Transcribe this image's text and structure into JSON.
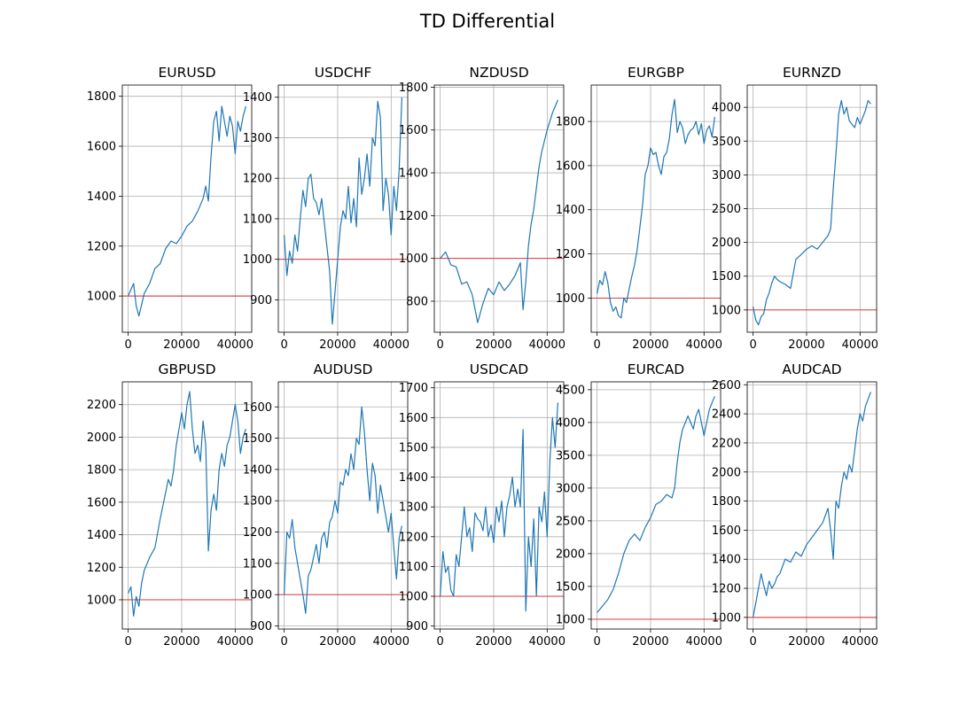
{
  "figure": {
    "title": "TD Differential"
  },
  "colors": {
    "line": "#1f77b4",
    "reference_line": "#d62728",
    "grid": "#b0b0b0",
    "axes": "#000000"
  },
  "chart_data": [
    {
      "type": "line",
      "title": "EURUSD",
      "grid": true,
      "xlim": [
        -2200,
        46200
      ],
      "ylim": [
        855,
        1845
      ],
      "xticks": [
        0,
        20000,
        40000
      ],
      "yticks": [
        1000,
        1200,
        1400,
        1600,
        1800
      ],
      "reference_y": 1000,
      "series": [
        {
          "x": [
            0,
            2000,
            3000,
            4000,
            6000,
            8000,
            10000,
            12000,
            14000,
            16000,
            18000,
            20000,
            22000,
            24000,
            26000,
            28000,
            29000,
            30000,
            31000,
            32000,
            33000,
            34000,
            35000,
            36000,
            37000,
            38000,
            39000,
            40000,
            41000,
            42000,
            43000,
            44000
          ],
          "y": [
            1000,
            1050,
            960,
            920,
            1010,
            1050,
            1110,
            1130,
            1190,
            1220,
            1210,
            1240,
            1280,
            1300,
            1340,
            1390,
            1440,
            1380,
            1560,
            1700,
            1740,
            1620,
            1760,
            1700,
            1640,
            1720,
            1680,
            1570,
            1700,
            1660,
            1720,
            1760
          ]
        }
      ]
    },
    {
      "type": "line",
      "title": "USDCHF",
      "grid": true,
      "xlim": [
        -2200,
        46200
      ],
      "ylim": [
        820,
        1430
      ],
      "xticks": [
        0,
        20000,
        40000
      ],
      "yticks": [
        900,
        1000,
        1100,
        1200,
        1300,
        1400
      ],
      "reference_y": 1000,
      "series": [
        {
          "x": [
            0,
            1000,
            2000,
            3000,
            4000,
            5000,
            6000,
            7000,
            8000,
            9000,
            10000,
            11000,
            12000,
            13000,
            14000,
            15000,
            16000,
            17000,
            18000,
            19000,
            20000,
            21000,
            22000,
            23000,
            24000,
            25000,
            26000,
            27000,
            28000,
            29000,
            30000,
            31000,
            32000,
            33000,
            34000,
            35000,
            36000,
            37000,
            38000,
            39000,
            40000,
            41000,
            42000,
            43000,
            44000
          ],
          "y": [
            1060,
            960,
            1020,
            990,
            1060,
            1020,
            1100,
            1170,
            1130,
            1200,
            1210,
            1150,
            1140,
            1110,
            1150,
            1090,
            1030,
            970,
            840,
            920,
            1000,
            1080,
            1120,
            1100,
            1180,
            1090,
            1150,
            1080,
            1250,
            1160,
            1200,
            1260,
            1180,
            1300,
            1280,
            1390,
            1350,
            1120,
            1200,
            1160,
            1060,
            1180,
            1120,
            1220,
            1400
          ]
        }
      ]
    },
    {
      "type": "line",
      "title": "NZDUSD",
      "grid": true,
      "xlim": [
        -2200,
        46200
      ],
      "ylim": [
        655,
        1810
      ],
      "xticks": [
        0,
        20000,
        40000
      ],
      "yticks": [
        800,
        1000,
        1200,
        1400,
        1600,
        1800
      ],
      "reference_y": 1000,
      "series": [
        {
          "x": [
            0,
            2000,
            4000,
            6000,
            8000,
            10000,
            12000,
            14000,
            16000,
            18000,
            20000,
            22000,
            24000,
            26000,
            28000,
            30000,
            31000,
            32000,
            33000,
            34000,
            35000,
            36000,
            37000,
            38000,
            40000,
            42000,
            44000
          ],
          "y": [
            1000,
            1030,
            970,
            960,
            880,
            890,
            830,
            700,
            790,
            860,
            830,
            890,
            850,
            880,
            920,
            980,
            760,
            890,
            1060,
            1160,
            1230,
            1330,
            1430,
            1500,
            1600,
            1680,
            1740
          ]
        }
      ]
    },
    {
      "type": "line",
      "title": "EURGBP",
      "grid": true,
      "xlim": [
        -2200,
        46200
      ],
      "ylim": [
        845,
        1965
      ],
      "xticks": [
        0,
        20000,
        40000
      ],
      "yticks": [
        1000,
        1200,
        1400,
        1600,
        1800
      ],
      "reference_y": 1000,
      "series": [
        {
          "x": [
            0,
            1000,
            2000,
            3000,
            4000,
            5000,
            6000,
            7000,
            8000,
            9000,
            10000,
            11000,
            12000,
            13000,
            14000,
            15000,
            16000,
            17000,
            18000,
            19000,
            20000,
            21000,
            22000,
            23000,
            24000,
            25000,
            26000,
            27000,
            28000,
            29000,
            30000,
            31000,
            32000,
            33000,
            34000,
            35000,
            36000,
            37000,
            38000,
            39000,
            40000,
            41000,
            42000,
            43000,
            44000
          ],
          "y": [
            1020,
            1080,
            1060,
            1120,
            1070,
            980,
            940,
            960,
            920,
            910,
            1000,
            980,
            1040,
            1100,
            1150,
            1220,
            1320,
            1420,
            1560,
            1600,
            1680,
            1650,
            1660,
            1600,
            1560,
            1640,
            1660,
            1720,
            1830,
            1900,
            1750,
            1800,
            1770,
            1700,
            1740,
            1760,
            1770,
            1800,
            1740,
            1790,
            1700,
            1760,
            1780,
            1730,
            1820
          ]
        }
      ]
    },
    {
      "type": "line",
      "title": "EURNZD",
      "grid": true,
      "xlim": [
        -2200,
        46200
      ],
      "ylim": [
        670,
        4330
      ],
      "xticks": [
        0,
        20000,
        40000
      ],
      "yticks": [
        1000,
        1500,
        2000,
        2500,
        3000,
        3500,
        4000
      ],
      "reference_y": 1000,
      "series": [
        {
          "x": [
            0,
            1000,
            2000,
            3000,
            4000,
            5000,
            6000,
            7000,
            8000,
            9000,
            10000,
            12000,
            14000,
            16000,
            18000,
            20000,
            22000,
            24000,
            26000,
            27000,
            28000,
            29000,
            30000,
            31000,
            32000,
            33000,
            34000,
            35000,
            36000,
            37000,
            38000,
            39000,
            40000,
            41000,
            42000,
            43000,
            44000
          ],
          "y": [
            1050,
            850,
            780,
            900,
            950,
            1150,
            1250,
            1400,
            1500,
            1450,
            1420,
            1380,
            1320,
            1750,
            1820,
            1900,
            1950,
            1900,
            2000,
            2050,
            2100,
            2200,
            2800,
            3300,
            3900,
            4100,
            3900,
            4000,
            3800,
            3750,
            3700,
            3850,
            3750,
            3850,
            3950,
            4100,
            4050
          ]
        }
      ]
    },
    {
      "type": "line",
      "title": "GBPUSD",
      "grid": true,
      "xlim": [
        -2200,
        46200
      ],
      "ylim": [
        820,
        2340
      ],
      "xticks": [
        0,
        20000,
        40000
      ],
      "yticks": [
        1000,
        1200,
        1400,
        1600,
        1800,
        2000,
        2200
      ],
      "reference_y": 1000,
      "series": [
        {
          "x": [
            0,
            1000,
            2000,
            3000,
            4000,
            5000,
            6000,
            8000,
            10000,
            12000,
            14000,
            15000,
            16000,
            17000,
            18000,
            19000,
            20000,
            21000,
            22000,
            23000,
            24000,
            25000,
            26000,
            27000,
            28000,
            29000,
            30000,
            31000,
            32000,
            33000,
            34000,
            35000,
            36000,
            37000,
            38000,
            39000,
            40000,
            41000,
            42000,
            43000,
            44000
          ],
          "y": [
            1040,
            1080,
            900,
            1020,
            960,
            1100,
            1180,
            1260,
            1320,
            1500,
            1660,
            1740,
            1700,
            1800,
            1950,
            2050,
            2150,
            2050,
            2200,
            2280,
            2050,
            1900,
            1950,
            1850,
            2100,
            1950,
            1300,
            1550,
            1650,
            1550,
            1800,
            1900,
            1820,
            1950,
            2000,
            2100,
            2200,
            2100,
            1900,
            2000,
            2050
          ]
        }
      ]
    },
    {
      "type": "line",
      "title": "AUDUSD",
      "grid": true,
      "xlim": [
        -2200,
        46200
      ],
      "ylim": [
        890,
        1680
      ],
      "xticks": [
        0,
        20000,
        40000
      ],
      "yticks": [
        900,
        1000,
        1100,
        1200,
        1300,
        1400,
        1500,
        1600
      ],
      "reference_y": 1000,
      "series": [
        {
          "x": [
            0,
            1000,
            2000,
            3000,
            4000,
            5000,
            6000,
            7000,
            8000,
            9000,
            10000,
            11000,
            12000,
            13000,
            14000,
            15000,
            16000,
            17000,
            18000,
            19000,
            20000,
            21000,
            22000,
            23000,
            24000,
            25000,
            26000,
            27000,
            28000,
            29000,
            30000,
            31000,
            32000,
            33000,
            34000,
            35000,
            36000,
            37000,
            38000,
            39000,
            40000,
            41000,
            42000,
            43000,
            44000
          ],
          "y": [
            1000,
            1200,
            1180,
            1240,
            1150,
            1100,
            1050,
            1000,
            940,
            1060,
            1080,
            1120,
            1160,
            1100,
            1180,
            1200,
            1150,
            1230,
            1250,
            1300,
            1260,
            1360,
            1350,
            1400,
            1380,
            1450,
            1400,
            1500,
            1480,
            1600,
            1520,
            1400,
            1300,
            1420,
            1380,
            1260,
            1350,
            1300,
            1250,
            1200,
            1260,
            1150,
            1050,
            1180,
            1220
          ]
        }
      ]
    },
    {
      "type": "line",
      "title": "USDCAD",
      "grid": true,
      "xlim": [
        -2200,
        46200
      ],
      "ylim": [
        890,
        1720
      ],
      "xticks": [
        0,
        20000,
        40000
      ],
      "yticks": [
        900,
        1000,
        1100,
        1200,
        1300,
        1400,
        1500,
        1600,
        1700
      ],
      "reference_y": 1000,
      "series": [
        {
          "x": [
            0,
            1000,
            2000,
            3000,
            4000,
            5000,
            6000,
            7000,
            8000,
            9000,
            10000,
            11000,
            12000,
            13000,
            14000,
            15000,
            16000,
            17000,
            18000,
            19000,
            20000,
            21000,
            22000,
            23000,
            24000,
            25000,
            26000,
            27000,
            28000,
            29000,
            30000,
            31000,
            32000,
            33000,
            34000,
            35000,
            36000,
            37000,
            38000,
            39000,
            40000,
            41000,
            42000,
            43000,
            44000
          ],
          "y": [
            1000,
            1150,
            1080,
            1100,
            1020,
            1000,
            1140,
            1100,
            1200,
            1300,
            1200,
            1230,
            1150,
            1280,
            1260,
            1250,
            1220,
            1300,
            1200,
            1240,
            1180,
            1300,
            1250,
            1320,
            1200,
            1300,
            1340,
            1400,
            1300,
            1360,
            1300,
            1560,
            950,
            1200,
            1100,
            1260,
            1000,
            1300,
            1250,
            1350,
            1200,
            1450,
            1600,
            1500,
            1650
          ]
        }
      ]
    },
    {
      "type": "line",
      "title": "EURCAD",
      "grid": true,
      "xlim": [
        -2200,
        46200
      ],
      "ylim": [
        850,
        4620
      ],
      "xticks": [
        0,
        20000,
        40000
      ],
      "yticks": [
        1000,
        1500,
        2000,
        2500,
        3000,
        3500,
        4000,
        4500
      ],
      "reference_y": 1000,
      "series": [
        {
          "x": [
            0,
            2000,
            4000,
            6000,
            8000,
            10000,
            12000,
            14000,
            16000,
            18000,
            20000,
            22000,
            24000,
            26000,
            28000,
            29000,
            30000,
            31000,
            32000,
            33000,
            34000,
            35000,
            36000,
            37000,
            38000,
            39000,
            40000,
            41000,
            42000,
            43000,
            44000
          ],
          "y": [
            1100,
            1200,
            1300,
            1450,
            1700,
            2000,
            2200,
            2300,
            2200,
            2400,
            2550,
            2750,
            2800,
            2900,
            2850,
            3000,
            3400,
            3700,
            3900,
            4000,
            4100,
            4000,
            3900,
            4100,
            4200,
            4000,
            3800,
            4000,
            4200,
            4300,
            4400
          ]
        }
      ]
    },
    {
      "type": "line",
      "title": "AUDCAD",
      "grid": true,
      "xlim": [
        -2200,
        46200
      ],
      "ylim": [
        920,
        2620
      ],
      "xticks": [
        0,
        20000,
        40000
      ],
      "yticks": [
        1000,
        1200,
        1400,
        1600,
        1800,
        2000,
        2200,
        2400,
        2600
      ],
      "reference_y": 1000,
      "series": [
        {
          "x": [
            0,
            1000,
            2000,
            3000,
            4000,
            5000,
            6000,
            7000,
            8000,
            9000,
            10000,
            12000,
            14000,
            16000,
            18000,
            20000,
            22000,
            24000,
            26000,
            27000,
            28000,
            29000,
            30000,
            31000,
            32000,
            33000,
            34000,
            35000,
            36000,
            37000,
            38000,
            39000,
            40000,
            41000,
            42000,
            43000,
            44000
          ],
          "y": [
            1000,
            1100,
            1200,
            1300,
            1220,
            1150,
            1250,
            1200,
            1230,
            1280,
            1300,
            1400,
            1380,
            1450,
            1420,
            1500,
            1550,
            1600,
            1650,
            1700,
            1750,
            1600,
            1400,
            1800,
            1750,
            1900,
            2000,
            1950,
            2050,
            2000,
            2150,
            2300,
            2400,
            2350,
            2450,
            2500,
            2550
          ]
        }
      ]
    }
  ]
}
